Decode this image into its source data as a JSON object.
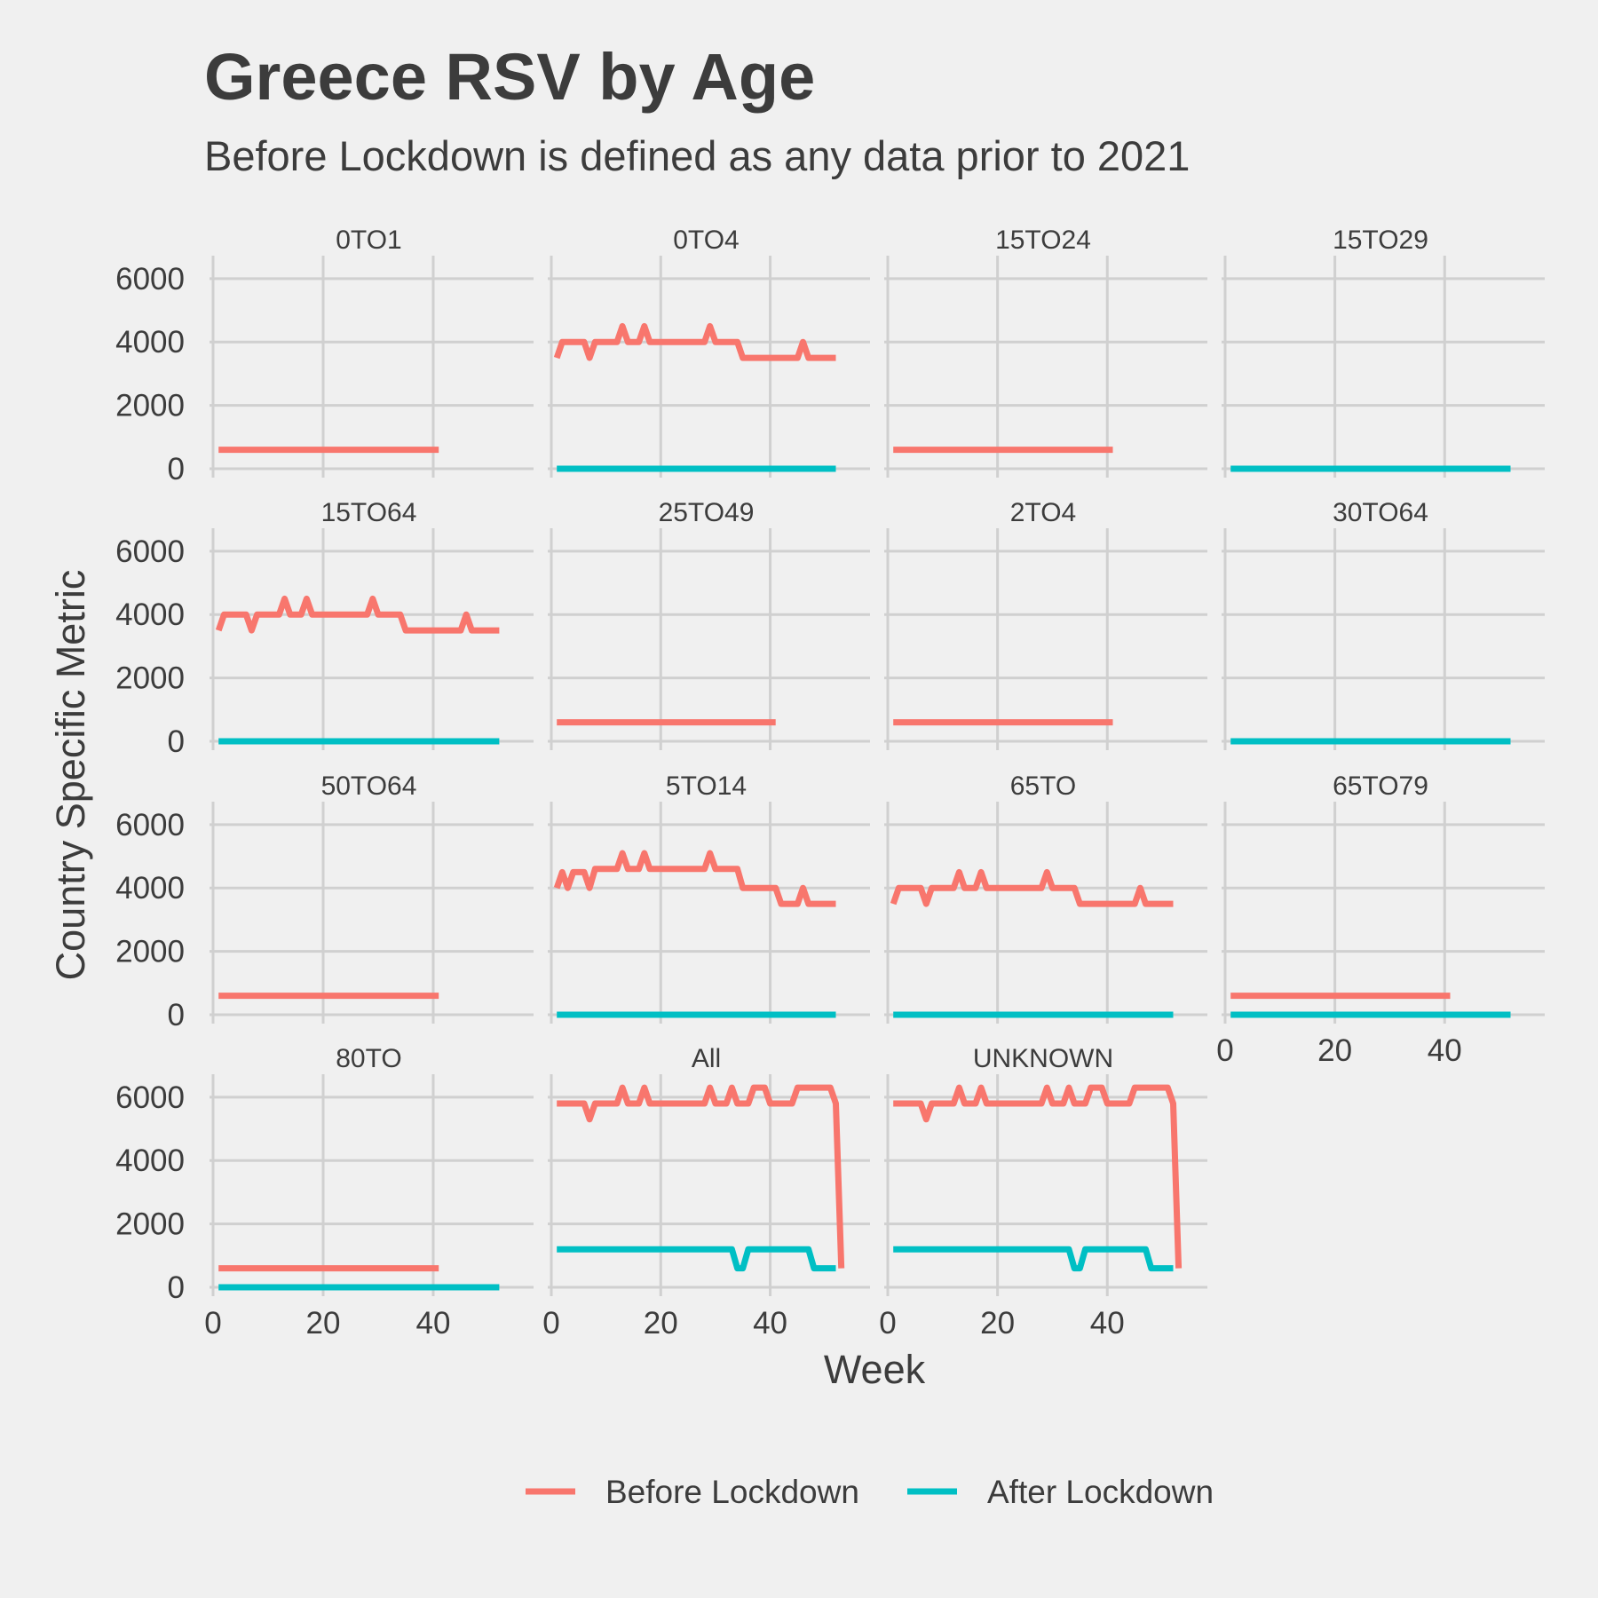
{
  "chart_data": {
    "type": "line",
    "title": "Greece RSV by Age",
    "subtitle": "Before Lockdown is defined as any data prior to 2021",
    "xlabel": "Week",
    "ylabel": "Country Specific Metric",
    "xlim": [
      0,
      55
    ],
    "ylim": [
      0,
      6500
    ],
    "x_ticks": [
      0,
      20,
      40
    ],
    "y_ticks": [
      0,
      2000,
      4000,
      6000
    ],
    "grid": true,
    "legend_position": "bottom",
    "legend": [
      {
        "key": "before",
        "label": "Before Lockdown",
        "color": "#f8766d"
      },
      {
        "key": "after",
        "label": "After Lockdown",
        "color": "#00bfc4"
      }
    ],
    "panels": [
      {
        "label": "0TO1",
        "before": [
          [
            1,
            600
          ],
          [
            41,
            600
          ]
        ],
        "after": []
      },
      {
        "label": "0TO4",
        "before": [
          [
            1,
            3500
          ],
          [
            2,
            4000
          ],
          [
            6,
            4000
          ],
          [
            7,
            3500
          ],
          [
            8,
            4000
          ],
          [
            12,
            4000
          ],
          [
            13,
            4500
          ],
          [
            14,
            4000
          ],
          [
            16,
            4000
          ],
          [
            17,
            4500
          ],
          [
            18,
            4000
          ],
          [
            28,
            4000
          ],
          [
            29,
            4500
          ],
          [
            30,
            4000
          ],
          [
            34,
            4000
          ],
          [
            35,
            3500
          ],
          [
            45,
            3500
          ],
          [
            46,
            4000
          ],
          [
            47,
            3500
          ],
          [
            52,
            3500
          ]
        ],
        "after": [
          [
            1,
            0
          ],
          [
            52,
            0
          ]
        ]
      },
      {
        "label": "15TO24",
        "before": [
          [
            1,
            600
          ],
          [
            41,
            600
          ]
        ],
        "after": []
      },
      {
        "label": "15TO29",
        "before": [],
        "after": [
          [
            1,
            0
          ],
          [
            52,
            0
          ]
        ]
      },
      {
        "label": "15TO64",
        "before": [
          [
            1,
            3500
          ],
          [
            2,
            4000
          ],
          [
            6,
            4000
          ],
          [
            7,
            3500
          ],
          [
            8,
            4000
          ],
          [
            12,
            4000
          ],
          [
            13,
            4500
          ],
          [
            14,
            4000
          ],
          [
            16,
            4000
          ],
          [
            17,
            4500
          ],
          [
            18,
            4000
          ],
          [
            28,
            4000
          ],
          [
            29,
            4500
          ],
          [
            30,
            4000
          ],
          [
            34,
            4000
          ],
          [
            35,
            3500
          ],
          [
            45,
            3500
          ],
          [
            46,
            4000
          ],
          [
            47,
            3500
          ],
          [
            52,
            3500
          ]
        ],
        "after": [
          [
            1,
            0
          ],
          [
            52,
            0
          ]
        ]
      },
      {
        "label": "25TO49",
        "before": [
          [
            1,
            600
          ],
          [
            41,
            600
          ]
        ],
        "after": []
      },
      {
        "label": "2TO4",
        "before": [
          [
            1,
            600
          ],
          [
            41,
            600
          ]
        ],
        "after": []
      },
      {
        "label": "30TO64",
        "before": [],
        "after": [
          [
            1,
            0
          ],
          [
            52,
            0
          ]
        ]
      },
      {
        "label": "50TO64",
        "before": [
          [
            1,
            600
          ],
          [
            41,
            600
          ]
        ],
        "after": []
      },
      {
        "label": "5TO14",
        "before": [
          [
            1,
            4000
          ],
          [
            2,
            4500
          ],
          [
            3,
            4000
          ],
          [
            4,
            4500
          ],
          [
            6,
            4500
          ],
          [
            7,
            4000
          ],
          [
            8,
            4600
          ],
          [
            12,
            4600
          ],
          [
            13,
            5100
          ],
          [
            14,
            4600
          ],
          [
            16,
            4600
          ],
          [
            17,
            5100
          ],
          [
            18,
            4600
          ],
          [
            28,
            4600
          ],
          [
            29,
            5100
          ],
          [
            30,
            4600
          ],
          [
            34,
            4600
          ],
          [
            35,
            4000
          ],
          [
            41,
            4000
          ],
          [
            42,
            3500
          ],
          [
            45,
            3500
          ],
          [
            46,
            4000
          ],
          [
            47,
            3500
          ],
          [
            52,
            3500
          ]
        ],
        "after": [
          [
            1,
            0
          ],
          [
            52,
            0
          ]
        ]
      },
      {
        "label": "65TO",
        "before": [
          [
            1,
            3500
          ],
          [
            2,
            4000
          ],
          [
            6,
            4000
          ],
          [
            7,
            3500
          ],
          [
            8,
            4000
          ],
          [
            12,
            4000
          ],
          [
            13,
            4500
          ],
          [
            14,
            4000
          ],
          [
            16,
            4000
          ],
          [
            17,
            4500
          ],
          [
            18,
            4000
          ],
          [
            28,
            4000
          ],
          [
            29,
            4500
          ],
          [
            30,
            4000
          ],
          [
            34,
            4000
          ],
          [
            35,
            3500
          ],
          [
            45,
            3500
          ],
          [
            46,
            4000
          ],
          [
            47,
            3500
          ],
          [
            52,
            3500
          ]
        ],
        "after": [
          [
            1,
            0
          ],
          [
            52,
            0
          ]
        ]
      },
      {
        "label": "65TO79",
        "before": [
          [
            1,
            600
          ],
          [
            41,
            600
          ]
        ],
        "after": [
          [
            1,
            0
          ],
          [
            52,
            0
          ]
        ]
      },
      {
        "label": "80TO",
        "before": [
          [
            1,
            600
          ],
          [
            41,
            600
          ]
        ],
        "after": [
          [
            1,
            0
          ],
          [
            52,
            0
          ]
        ]
      },
      {
        "label": "All",
        "before": [
          [
            1,
            5800
          ],
          [
            6,
            5800
          ],
          [
            7,
            5300
          ],
          [
            8,
            5800
          ],
          [
            12,
            5800
          ],
          [
            13,
            6300
          ],
          [
            14,
            5800
          ],
          [
            16,
            5800
          ],
          [
            17,
            6300
          ],
          [
            18,
            5800
          ],
          [
            28,
            5800
          ],
          [
            29,
            6300
          ],
          [
            30,
            5800
          ],
          [
            32,
            5800
          ],
          [
            33,
            6300
          ],
          [
            34,
            5800
          ],
          [
            36,
            5800
          ],
          [
            37,
            6300
          ],
          [
            39,
            6300
          ],
          [
            40,
            5800
          ],
          [
            44,
            5800
          ],
          [
            45,
            6300
          ],
          [
            51,
            6300
          ],
          [
            52,
            5800
          ],
          [
            53,
            600
          ]
        ],
        "after": [
          [
            1,
            1200
          ],
          [
            33,
            1200
          ],
          [
            34,
            600
          ],
          [
            35,
            600
          ],
          [
            36,
            1200
          ],
          [
            47,
            1200
          ],
          [
            48,
            600
          ],
          [
            52,
            600
          ]
        ]
      },
      {
        "label": "UNKNOWN",
        "before": [
          [
            1,
            5800
          ],
          [
            6,
            5800
          ],
          [
            7,
            5300
          ],
          [
            8,
            5800
          ],
          [
            12,
            5800
          ],
          [
            13,
            6300
          ],
          [
            14,
            5800
          ],
          [
            16,
            5800
          ],
          [
            17,
            6300
          ],
          [
            18,
            5800
          ],
          [
            28,
            5800
          ],
          [
            29,
            6300
          ],
          [
            30,
            5800
          ],
          [
            32,
            5800
          ],
          [
            33,
            6300
          ],
          [
            34,
            5800
          ],
          [
            36,
            5800
          ],
          [
            37,
            6300
          ],
          [
            39,
            6300
          ],
          [
            40,
            5800
          ],
          [
            44,
            5800
          ],
          [
            45,
            6300
          ],
          [
            51,
            6300
          ],
          [
            52,
            5800
          ],
          [
            53,
            600
          ]
        ],
        "after": [
          [
            1,
            1200
          ],
          [
            33,
            1200
          ],
          [
            34,
            600
          ],
          [
            35,
            600
          ],
          [
            36,
            1200
          ],
          [
            47,
            1200
          ],
          [
            48,
            600
          ],
          [
            52,
            600
          ]
        ]
      }
    ]
  }
}
